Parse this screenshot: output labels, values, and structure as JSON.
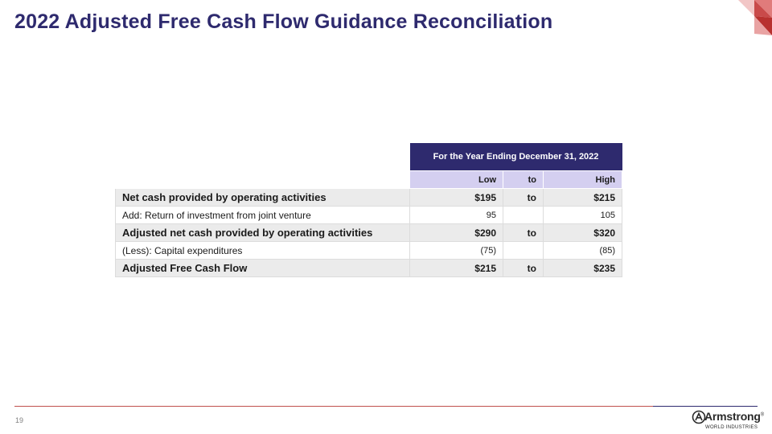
{
  "slide": {
    "title": "2022 Adjusted Free Cash Flow Guidance Reconciliation",
    "page_number": "19",
    "accent_color": "#2e2a6e",
    "rule_color": "#c0504d"
  },
  "table": {
    "period_header": "For the Year Ending December 31, 2022",
    "columns": {
      "low": "Low",
      "to": "to",
      "high": "High"
    },
    "rows": [
      {
        "label": "Net cash provided by operating activities",
        "low": "$195",
        "to": "to",
        "high": "$215"
      },
      {
        "label": "Add: Return of investment from joint venture",
        "low": "95",
        "to": "",
        "high": "105"
      },
      {
        "label": "Adjusted net cash provided by operating activities",
        "low": "$290",
        "to": "to",
        "high": "$320"
      },
      {
        "label": "(Less): Capital expenditures",
        "low": "(75)",
        "to": "",
        "high": "(85)"
      },
      {
        "label": "Adjusted Free Cash Flow",
        "low": "$215",
        "to": "to",
        "high": "$235"
      }
    ]
  },
  "logo": {
    "name": "Armstrong",
    "subtitle": "WORLD INDUSTRIES",
    "registered": "®"
  },
  "icons": [
    "corner-triangles-icon",
    "armstrong-logo-mark-icon"
  ]
}
